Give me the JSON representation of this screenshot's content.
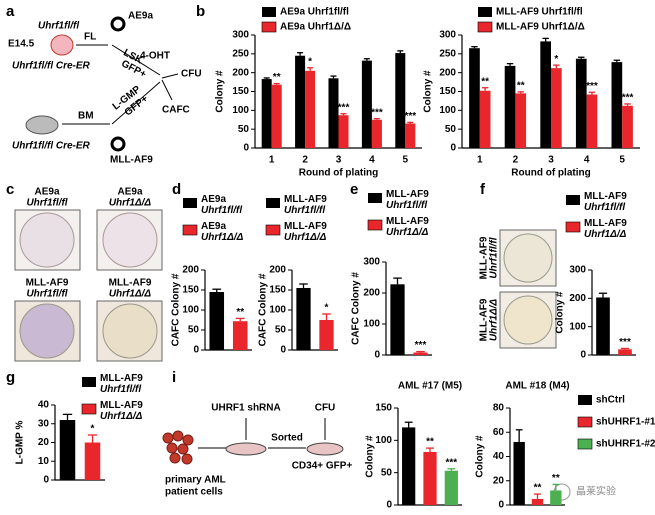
{
  "panel_labels": [
    "a",
    "b",
    "c",
    "d",
    "e",
    "f",
    "g",
    "i"
  ],
  "panel_a": {
    "mouse1_genotype": "Uhrf1fl/fl",
    "age": "E14.5",
    "mouse1_line": "Uhrf1fl/fl Cre-ER",
    "source1": "FL",
    "sort1": "LSK",
    "gfp1": "GFP+",
    "virus1": "AE9a",
    "treatment": "4-OHT",
    "assay1": "CFU",
    "assay2": "CAFC",
    "source2": "BM",
    "sort2": "L-GMP",
    "gfp2": "GFP+",
    "mouse2_line": "Uhrf1fl/fl Cre-ER",
    "virus2": "MLL-AF9"
  },
  "panel_c": {
    "labels": [
      [
        "AE9a",
        "Uhrf1fl/fl"
      ],
      [
        "AE9a",
        "Uhrf1Δ/Δ"
      ],
      [
        "MLL-AF9",
        "Uhrf1fl/fl"
      ],
      [
        "MLL-AF9",
        "Uhrf1Δ/Δ"
      ]
    ]
  },
  "panel_f": {
    "labels": [
      [
        "MLL-AF9",
        "Uhrf1fl/fl"
      ],
      [
        "MLL-AF9",
        "Uhrf1Δ/Δ"
      ]
    ]
  },
  "panel_i": {
    "shrna": "UHRF1 shRNA",
    "sorted": "Sorted",
    "assay": "CFU",
    "cells": [
      "primary AML",
      "patient cells"
    ],
    "population": "CD34+ GFP+"
  },
  "watermark": "晶莱实验",
  "chart_data": [
    {
      "type": "bar",
      "ylabel": "Colony #",
      "xlabel": "Round of plating",
      "categories": [
        "1",
        "2",
        "3",
        "4",
        "5"
      ],
      "ylim": [
        0,
        300
      ],
      "yticks": [
        0,
        50,
        100,
        150,
        200,
        250,
        300
      ],
      "series": [
        {
          "name": "AE9a Uhrf1fl/fl",
          "color": "#000000",
          "values": [
            183,
            245,
            185,
            232,
            252
          ],
          "errors": [
            3,
            8,
            6,
            5,
            6
          ]
        },
        {
          "name": "AE9a Uhrf1Δ/Δ",
          "color": "#e8262b",
          "values": [
            168,
            205,
            87,
            75,
            65
          ],
          "errors": [
            3,
            8,
            4,
            3,
            3
          ],
          "significance": [
            "**",
            "*",
            "***",
            "***",
            "***"
          ]
        }
      ]
    },
    {
      "type": "bar",
      "ylabel": "Colony #",
      "xlabel": "Round of plating",
      "categories": [
        "1",
        "2",
        "3",
        "4",
        "5"
      ],
      "ylim": [
        0,
        300
      ],
      "yticks": [
        0,
        50,
        100,
        150,
        200,
        250,
        300
      ],
      "series": [
        {
          "name": "MLL-AF9 Uhrf1fl/fl",
          "color": "#000000",
          "values": [
            265,
            218,
            283,
            237,
            228
          ],
          "errors": [
            4,
            6,
            8,
            4,
            5
          ]
        },
        {
          "name": "MLL-AF9 Uhrf1Δ/Δ",
          "color": "#e8262b",
          "values": [
            152,
            145,
            212,
            142,
            112
          ],
          "errors": [
            8,
            4,
            8,
            6,
            5
          ],
          "significance": [
            "**",
            "**",
            "*",
            "***",
            "***"
          ]
        }
      ]
    },
    {
      "type": "bar",
      "ylabel": "CAFC Colony #",
      "ylim": [
        0,
        200
      ],
      "yticks": [
        0,
        50,
        100,
        150,
        200
      ],
      "series": [
        {
          "name": "AE9a Uhrf1fl/fl",
          "color": "#000000",
          "values": [
            145
          ],
          "errors": [
            7
          ]
        },
        {
          "name": "AE9a Uhrf1Δ/Δ",
          "color": "#e8262b",
          "values": [
            72
          ],
          "errors": [
            7
          ],
          "significance": [
            "**"
          ]
        }
      ]
    },
    {
      "type": "bar",
      "ylabel": "CAFC Colony #",
      "ylim": [
        0,
        200
      ],
      "yticks": [
        0,
        50,
        100,
        150,
        200
      ],
      "series": [
        {
          "name": "MLL-AF9 Uhrf1fl/fl",
          "color": "#000000",
          "values": [
            155
          ],
          "errors": [
            10
          ]
        },
        {
          "name": "MLL-AF9 Uhrf1Δ/Δ",
          "color": "#e8262b",
          "values": [
            75
          ],
          "errors": [
            15
          ],
          "significance": [
            "*"
          ]
        }
      ]
    },
    {
      "type": "bar",
      "ylabel": "CAFC Colony #",
      "ylim": [
        0,
        300
      ],
      "yticks": [
        0,
        100,
        200,
        300
      ],
      "series": [
        {
          "name": "MLL-AF9 Uhrf1fl/fl",
          "color": "#000000",
          "values": [
            228
          ],
          "errors": [
            20
          ]
        },
        {
          "name": "MLL-AF9 Uhrf1Δ/Δ",
          "color": "#e8262b",
          "values": [
            8
          ],
          "errors": [
            3
          ],
          "significance": [
            "***"
          ]
        }
      ]
    },
    {
      "type": "bar",
      "ylabel": "Colony #",
      "ylim": [
        0,
        300
      ],
      "yticks": [
        0,
        100,
        200,
        300
      ],
      "series": [
        {
          "name": "MLL-AF9 Uhrf1fl/fl",
          "color": "#000000",
          "values": [
            203
          ],
          "errors": [
            15
          ]
        },
        {
          "name": "MLL-AF9 Uhrf1Δ/Δ",
          "color": "#e8262b",
          "values": [
            20
          ],
          "errors": [
            3
          ],
          "significance": [
            "***"
          ]
        }
      ]
    },
    {
      "type": "bar",
      "ylabel": "L-GMP %",
      "ylim": [
        0,
        40
      ],
      "yticks": [
        0,
        10,
        20,
        30,
        40
      ],
      "series": [
        {
          "name": "MLL-AF9 Uhrf1fl/fl",
          "color": "#000000",
          "values": [
            32
          ],
          "errors": [
            3
          ]
        },
        {
          "name": "MLL-AF9 Uhrf1Δ/Δ",
          "color": "#e8262b",
          "values": [
            20
          ],
          "errors": [
            4
          ],
          "significance": [
            "*"
          ]
        }
      ]
    },
    {
      "type": "bar",
      "title": "AML #17 (M5)",
      "ylabel": "Colony #",
      "ylim": [
        0,
        150
      ],
      "yticks": [
        0,
        50,
        100,
        150
      ],
      "series": [
        {
          "color": "#000000",
          "values": [
            120
          ],
          "errors": [
            8
          ]
        },
        {
          "color": "#e8262b",
          "values": [
            82
          ],
          "errors": [
            6
          ],
          "significance": [
            "**"
          ]
        },
        {
          "color": "#4caf50",
          "values": [
            53
          ],
          "errors": [
            3
          ],
          "significance": [
            "***"
          ]
        }
      ]
    },
    {
      "type": "bar",
      "title": "AML #18 (M4)",
      "ylabel": "Colony #",
      "ylim": [
        0,
        80
      ],
      "yticks": [
        0,
        20,
        40,
        60,
        80
      ],
      "series": [
        {
          "name": "shCtrl",
          "color": "#000000",
          "values": [
            52
          ],
          "errors": [
            10
          ]
        },
        {
          "name": "shUHRF1-#1",
          "color": "#e8262b",
          "values": [
            5
          ],
          "errors": [
            4
          ],
          "significance": [
            "**"
          ]
        },
        {
          "name": "shUHRF1-#2",
          "color": "#4caf50",
          "values": [
            12
          ],
          "errors": [
            5
          ],
          "significance": [
            "**"
          ]
        }
      ]
    }
  ]
}
